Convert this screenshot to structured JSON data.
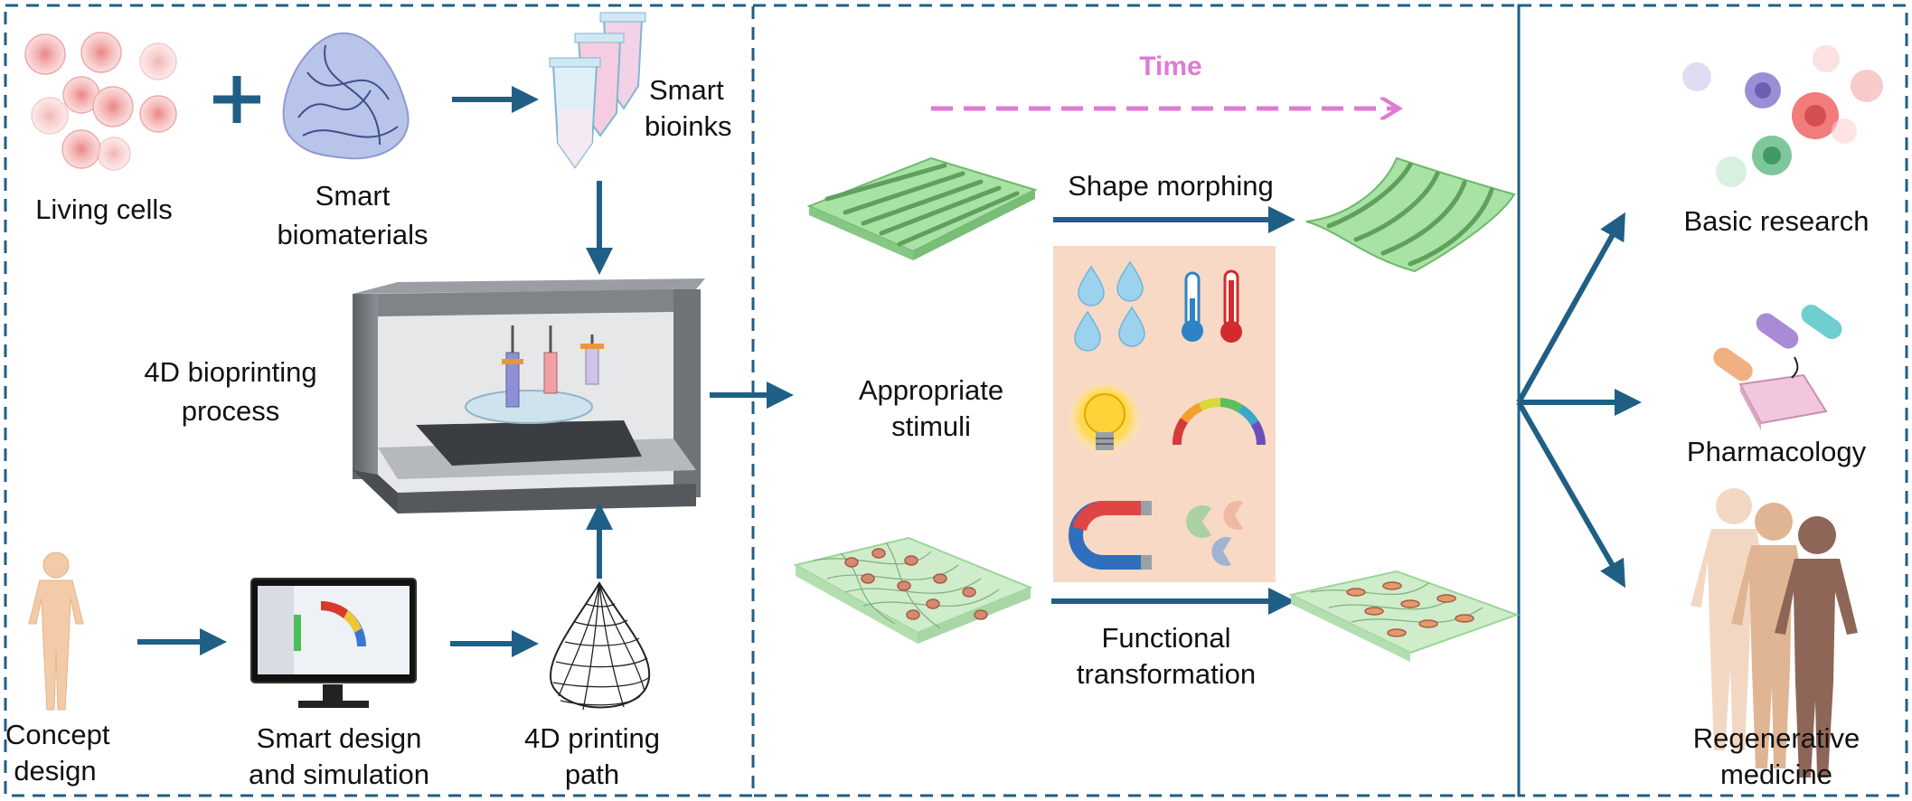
{
  "panel_left": {
    "living_cells": "Living cells",
    "smart_biomaterials_l1": "Smart",
    "smart_biomaterials_l2": "biomaterials",
    "smart_bioinks_l1": "Smart",
    "smart_bioinks_l2": "bioinks",
    "process_l1": "4D bioprinting",
    "process_l2": "process",
    "concept_l1": "Concept",
    "concept_l2": "design",
    "design_sim_l1": "Smart design",
    "design_sim_l2": "and simulation",
    "path_l1": "4D printing",
    "path_l2": "path"
  },
  "panel_middle": {
    "time": "Time",
    "shape_morphing": "Shape morphing",
    "stimuli_l1": "Appropriate",
    "stimuli_l2": "stimuli",
    "functional_l1": "Functional",
    "functional_l2": "transformation"
  },
  "panel_right": {
    "basic_research": "Basic research",
    "pharmacology": "Pharmacology",
    "regen_l1": "Regenerative",
    "regen_l2": "medicine"
  },
  "colors": {
    "frame": "#1f5f86",
    "arrow": "#1f5f86",
    "time": "#e07ad6",
    "stimuli_panel": "#f8d9c6",
    "mesh_green": "#b8e8b4",
    "cell": "#f0a3a3"
  }
}
